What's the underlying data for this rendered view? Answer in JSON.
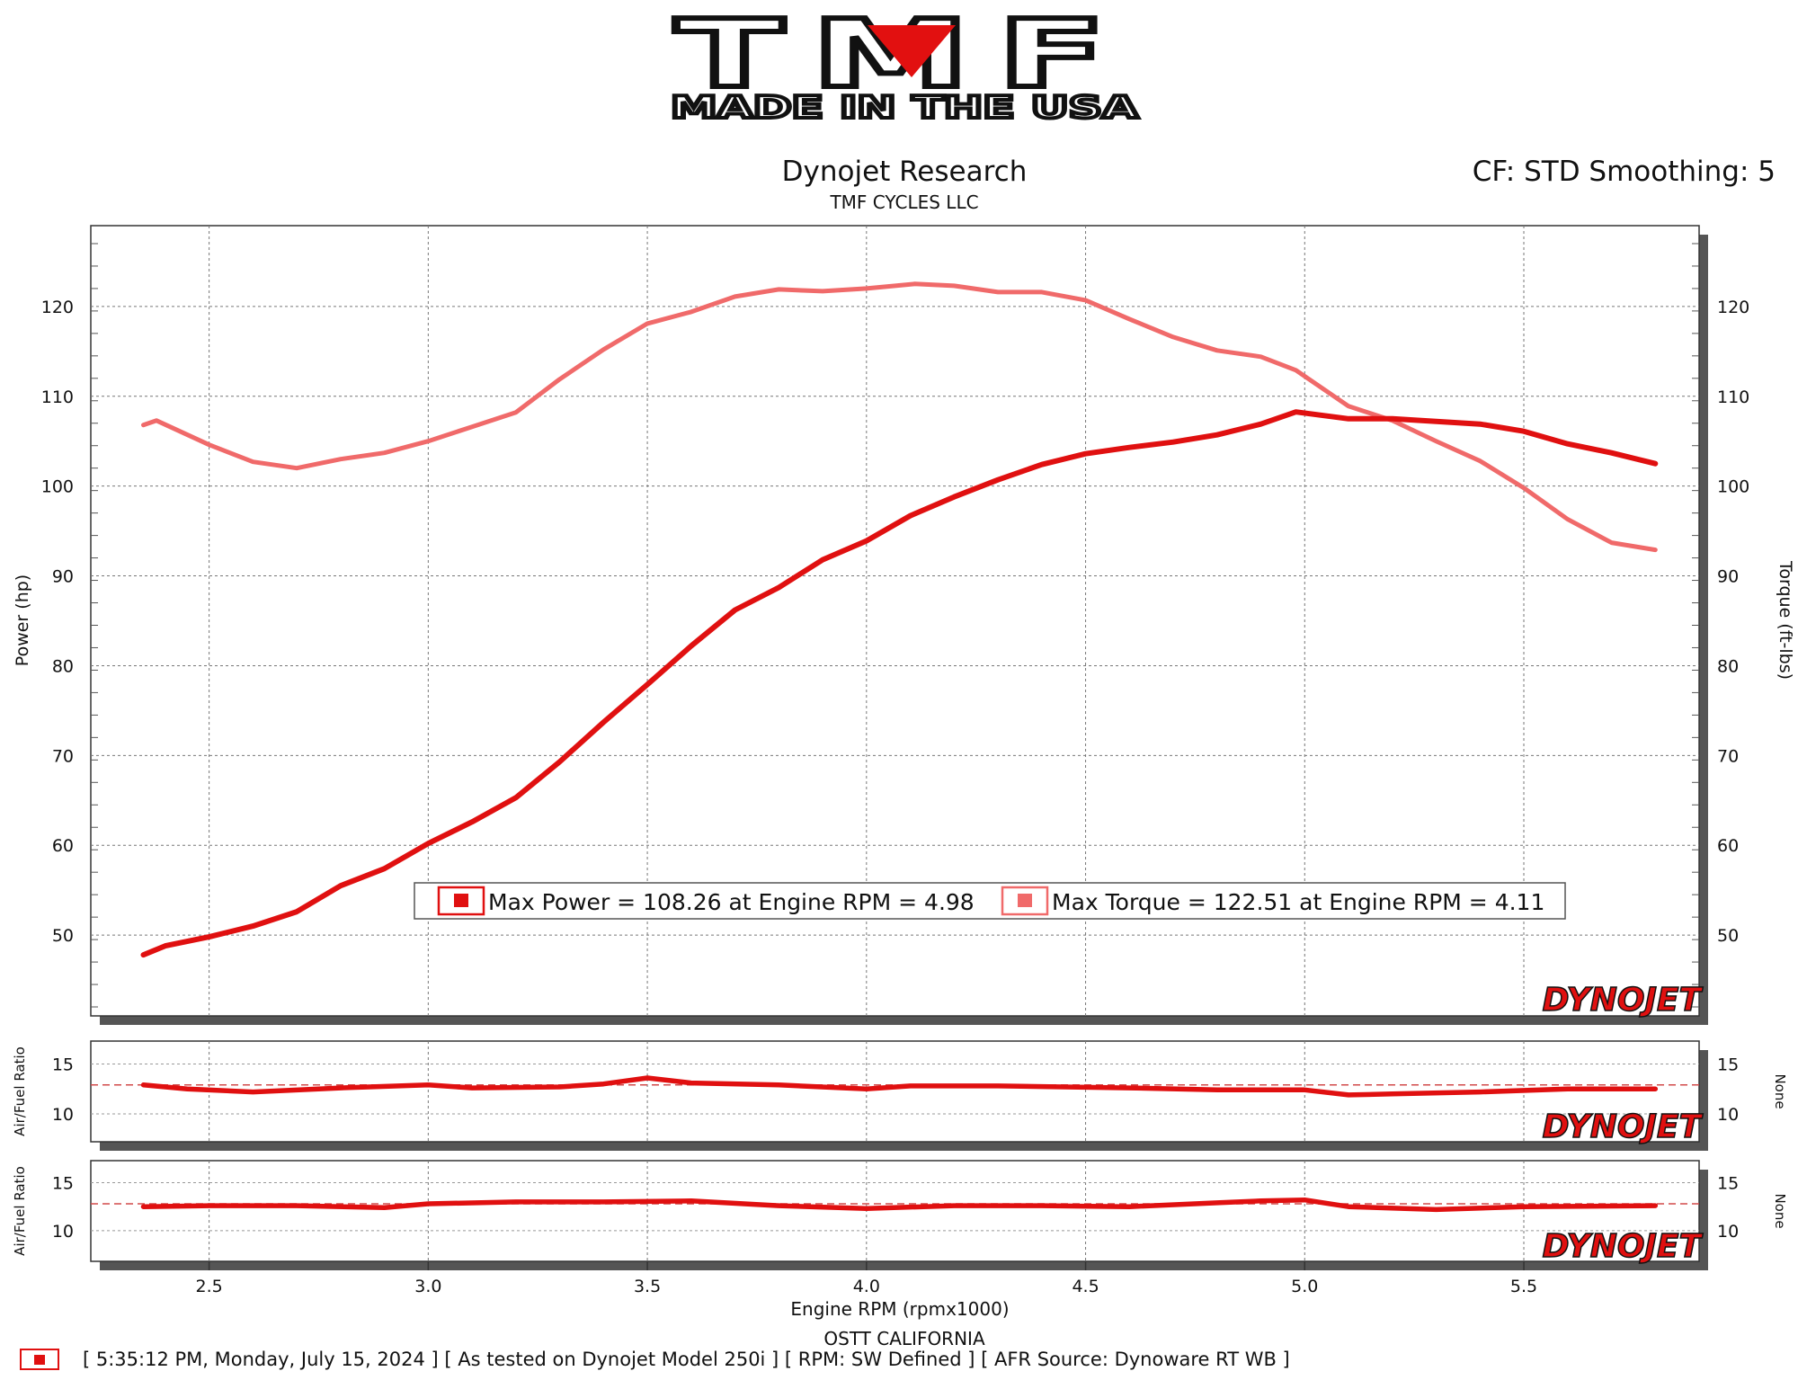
{
  "logo": {
    "brand": "TMF",
    "tagline": "MADE IN THE USA"
  },
  "header": {
    "title": "Dynojet Research",
    "subtitle": "TMF CYCLES LLC",
    "settings": "CF: STD Smoothing: 5"
  },
  "watermark": "DYNOJET",
  "footer": {
    "location": "OSTT CALIFORNIA",
    "run_info": "[ 5:35:12 PM, Monday, July 15, 2024 ] [ As tested on Dynojet Model 250i ] [ RPM: SW Defined ] [ AFR Source: Dynoware RT WB ]"
  },
  "colors": {
    "power": "#e01010",
    "torque": "#f06a6a",
    "afr": "#e01010",
    "target_line": "#d24a4a"
  },
  "chart_data": [
    {
      "type": "line",
      "title": "Dynojet Research",
      "xlabel": "Engine RPM (rpmx1000)",
      "ylabel": "Power (hp)",
      "y2label": "Torque (ft-lbs)",
      "xlim": [
        2.23,
        5.9
      ],
      "ylim": [
        41,
        129
      ],
      "xticks": [
        "2.5",
        "3.0",
        "3.5",
        "4.0",
        "4.5",
        "5.0",
        "5.5"
      ],
      "yticks": [
        "50",
        "60",
        "70",
        "80",
        "90",
        "100",
        "110",
        "120"
      ],
      "grid": true,
      "legend": [
        {
          "label": "Max Power = 108.26 at Engine RPM = 4.98",
          "series": "Power"
        },
        {
          "label": "Max Torque = 122.51 at Engine RPM = 4.11",
          "series": "Torque"
        }
      ],
      "series": [
        {
          "name": "Power",
          "x": [
            2.35,
            2.4,
            2.5,
            2.6,
            2.7,
            2.8,
            2.9,
            3.0,
            3.1,
            3.2,
            3.3,
            3.4,
            3.5,
            3.6,
            3.7,
            3.8,
            3.9,
            4.0,
            4.1,
            4.2,
            4.3,
            4.4,
            4.5,
            4.6,
            4.7,
            4.8,
            4.9,
            4.98,
            5.1,
            5.2,
            5.3,
            5.4,
            5.5,
            5.6,
            5.7,
            5.8
          ],
          "values": [
            47.8,
            48.8,
            49.8,
            51.0,
            52.6,
            55.5,
            57.4,
            60.2,
            62.6,
            65.3,
            69.3,
            73.7,
            77.9,
            82.2,
            86.2,
            88.7,
            91.8,
            93.9,
            96.7,
            98.8,
            100.7,
            102.4,
            103.6,
            104.3,
            104.9,
            105.7,
            106.9,
            108.26,
            107.5,
            107.5,
            107.2,
            106.9,
            106.1,
            104.7,
            103.7,
            102.5
          ]
        },
        {
          "name": "Torque",
          "x": [
            2.35,
            2.38,
            2.5,
            2.6,
            2.7,
            2.8,
            2.9,
            3.0,
            3.1,
            3.2,
            3.3,
            3.4,
            3.5,
            3.6,
            3.7,
            3.8,
            3.9,
            4.0,
            4.11,
            4.2,
            4.3,
            4.4,
            4.5,
            4.6,
            4.7,
            4.8,
            4.9,
            4.98,
            5.1,
            5.2,
            5.3,
            5.4,
            5.5,
            5.6,
            5.7,
            5.8
          ],
          "values": [
            106.8,
            107.3,
            104.6,
            102.7,
            102.0,
            103.0,
            103.7,
            105.0,
            106.6,
            108.2,
            111.9,
            115.2,
            118.1,
            119.4,
            121.1,
            121.9,
            121.7,
            122.0,
            122.51,
            122.3,
            121.6,
            121.6,
            120.7,
            118.6,
            116.6,
            115.1,
            114.4,
            112.9,
            108.9,
            107.3,
            105.0,
            102.8,
            99.8,
            96.3,
            93.7,
            92.9
          ]
        }
      ]
    },
    {
      "type": "line",
      "ylabel": "Air/Fuel Ratio",
      "y2label": "None",
      "ylim": [
        7.2,
        17.3
      ],
      "yticks": [
        "10",
        "15"
      ],
      "target": 12.9,
      "series": [
        {
          "name": "Air/Fuel Ratio",
          "x": [
            2.35,
            2.45,
            2.6,
            2.8,
            3.0,
            3.1,
            3.3,
            3.4,
            3.5,
            3.6,
            3.8,
            4.0,
            4.1,
            4.3,
            4.6,
            4.8,
            5.0,
            5.1,
            5.2,
            5.4,
            5.6,
            5.8
          ],
          "values": [
            12.9,
            12.5,
            12.2,
            12.6,
            12.9,
            12.6,
            12.7,
            13.0,
            13.6,
            13.1,
            12.9,
            12.5,
            12.8,
            12.8,
            12.6,
            12.4,
            12.4,
            11.9,
            12.0,
            12.2,
            12.5,
            12.5
          ]
        }
      ]
    },
    {
      "type": "line",
      "ylabel": "Air/Fuel Ratio",
      "y2label": "None",
      "ylim": [
        6.8,
        17.3
      ],
      "yticks": [
        "10",
        "15"
      ],
      "target": 12.8,
      "series": [
        {
          "name": "Air/Fuel Ratio",
          "x": [
            2.35,
            2.5,
            2.7,
            2.9,
            3.0,
            3.2,
            3.4,
            3.6,
            3.8,
            4.0,
            4.2,
            4.4,
            4.6,
            4.8,
            4.9,
            5.0,
            5.1,
            5.3,
            5.5,
            5.8
          ],
          "values": [
            12.5,
            12.6,
            12.6,
            12.4,
            12.8,
            13.0,
            13.0,
            13.1,
            12.6,
            12.3,
            12.6,
            12.6,
            12.5,
            12.9,
            13.1,
            13.2,
            12.5,
            12.2,
            12.5,
            12.6
          ]
        }
      ]
    }
  ]
}
